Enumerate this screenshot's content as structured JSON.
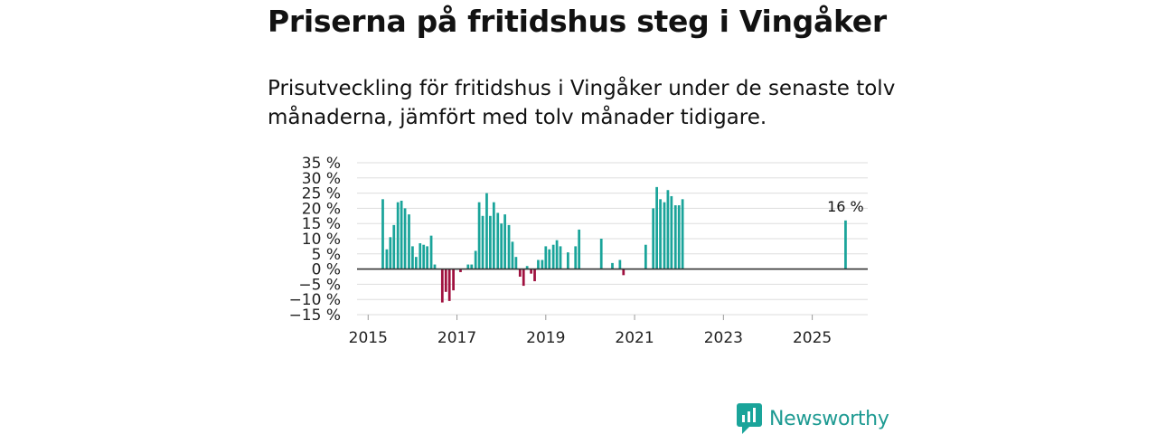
{
  "header": {
    "title": "Priserna på fritidshus steg i Vingåker",
    "subtitle": "Prisutveckling för fritidshus i Vingåker under de senaste tolv månaderna, jämfört med tolv månader tidigare."
  },
  "brand": {
    "name": "Newsworthy",
    "icon": "newsworthy-logo-icon"
  },
  "colors": {
    "positive": "#1aa49a",
    "negative": "#a0113f",
    "grid": "#dddddd",
    "zero": "#333333"
  },
  "chart_data": {
    "type": "bar",
    "title": "Priserna på fritidshus steg i Vingåker",
    "xlabel": "",
    "ylabel": "",
    "ylim": [
      -15,
      35
    ],
    "xlim": [
      2014.75,
      2026.25
    ],
    "y_ticks": [
      {
        "v": 35,
        "label": "35 %"
      },
      {
        "v": 30,
        "label": "30 %"
      },
      {
        "v": 25,
        "label": "25 %"
      },
      {
        "v": 20,
        "label": "20 %"
      },
      {
        "v": 15,
        "label": "15 %"
      },
      {
        "v": 10,
        "label": "10 %"
      },
      {
        "v": 5,
        "label": "5 %"
      },
      {
        "v": 0,
        "label": "0 %"
      },
      {
        "v": -5,
        "label": "−5 %"
      },
      {
        "v": -10,
        "label": "−10 %"
      },
      {
        "v": -15,
        "label": "−15 %"
      }
    ],
    "x_ticks": [
      {
        "v": 2015,
        "label": "2015"
      },
      {
        "v": 2017,
        "label": "2017"
      },
      {
        "v": 2019,
        "label": "2019"
      },
      {
        "v": 2021,
        "label": "2021"
      },
      {
        "v": 2023,
        "label": "2023"
      },
      {
        "v": 2025,
        "label": "2025"
      }
    ],
    "bar_width_years": 0.056,
    "series": [
      {
        "name": "Prisutveckling",
        "points": [
          {
            "x": 2015.33,
            "y": 23
          },
          {
            "x": 2015.42,
            "y": 6.5
          },
          {
            "x": 2015.5,
            "y": 10.5
          },
          {
            "x": 2015.58,
            "y": 14.5
          },
          {
            "x": 2015.67,
            "y": 22
          },
          {
            "x": 2015.75,
            "y": 22.5
          },
          {
            "x": 2015.83,
            "y": 20
          },
          {
            "x": 2015.92,
            "y": 18
          },
          {
            "x": 2016.0,
            "y": 7.5
          },
          {
            "x": 2016.08,
            "y": 4
          },
          {
            "x": 2016.17,
            "y": 8.5
          },
          {
            "x": 2016.25,
            "y": 8
          },
          {
            "x": 2016.33,
            "y": 7.5
          },
          {
            "x": 2016.42,
            "y": 11
          },
          {
            "x": 2016.5,
            "y": 1.5
          },
          {
            "x": 2016.67,
            "y": -11
          },
          {
            "x": 2016.75,
            "y": -7.5
          },
          {
            "x": 2016.83,
            "y": -10.5
          },
          {
            "x": 2016.92,
            "y": -7
          },
          {
            "x": 2017.08,
            "y": -1
          },
          {
            "x": 2017.25,
            "y": 1.5
          },
          {
            "x": 2017.33,
            "y": 1.5
          },
          {
            "x": 2017.42,
            "y": 6
          },
          {
            "x": 2017.5,
            "y": 22
          },
          {
            "x": 2017.58,
            "y": 17.5
          },
          {
            "x": 2017.67,
            "y": 25
          },
          {
            "x": 2017.75,
            "y": 17.5
          },
          {
            "x": 2017.83,
            "y": 22
          },
          {
            "x": 2017.92,
            "y": 18.5
          },
          {
            "x": 2018.0,
            "y": 15
          },
          {
            "x": 2018.08,
            "y": 18
          },
          {
            "x": 2018.17,
            "y": 14.5
          },
          {
            "x": 2018.25,
            "y": 9
          },
          {
            "x": 2018.33,
            "y": 4
          },
          {
            "x": 2018.42,
            "y": -2.5
          },
          {
            "x": 2018.5,
            "y": -5.5
          },
          {
            "x": 2018.58,
            "y": 1
          },
          {
            "x": 2018.67,
            "y": -1.5
          },
          {
            "x": 2018.75,
            "y": -4
          },
          {
            "x": 2018.83,
            "y": 3
          },
          {
            "x": 2018.92,
            "y": 3
          },
          {
            "x": 2019.0,
            "y": 7.5
          },
          {
            "x": 2019.08,
            "y": 6.5
          },
          {
            "x": 2019.17,
            "y": 8
          },
          {
            "x": 2019.25,
            "y": 9.5
          },
          {
            "x": 2019.33,
            "y": 7.5
          },
          {
            "x": 2019.5,
            "y": 5.5
          },
          {
            "x": 2019.67,
            "y": 7.5
          },
          {
            "x": 2019.75,
            "y": 13
          },
          {
            "x": 2020.25,
            "y": 10
          },
          {
            "x": 2020.5,
            "y": 2
          },
          {
            "x": 2020.67,
            "y": 3
          },
          {
            "x": 2020.75,
            "y": -2
          },
          {
            "x": 2021.25,
            "y": 8
          },
          {
            "x": 2021.42,
            "y": 20
          },
          {
            "x": 2021.5,
            "y": 27
          },
          {
            "x": 2021.58,
            "y": 23
          },
          {
            "x": 2021.67,
            "y": 22
          },
          {
            "x": 2021.75,
            "y": 26
          },
          {
            "x": 2021.83,
            "y": 24
          },
          {
            "x": 2021.92,
            "y": 21
          },
          {
            "x": 2022.0,
            "y": 21
          },
          {
            "x": 2022.08,
            "y": 23
          },
          {
            "x": 2025.75,
            "y": 16
          }
        ]
      }
    ],
    "annotations": [
      {
        "x": 2025.75,
        "y": 16,
        "label": "16 %"
      }
    ]
  }
}
